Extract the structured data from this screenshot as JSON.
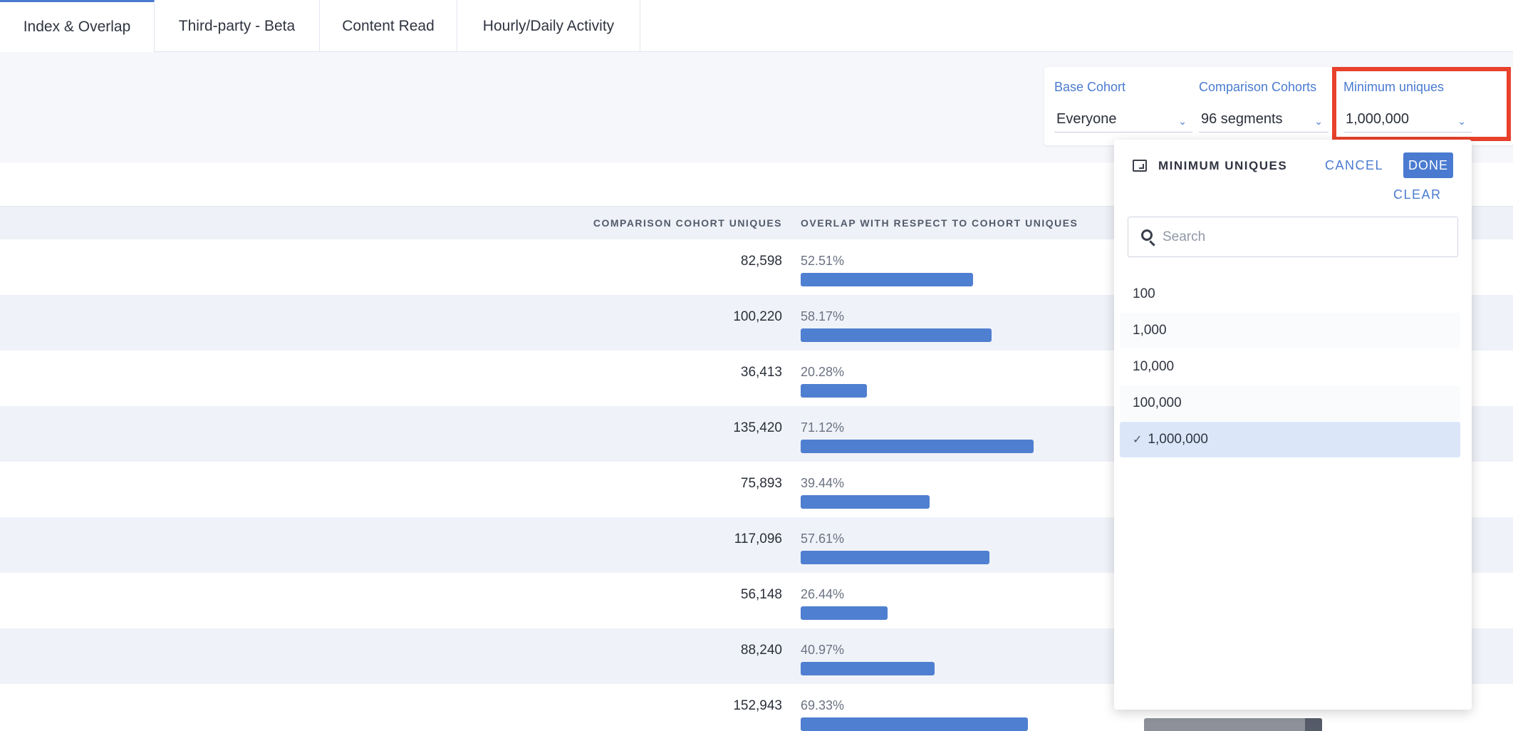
{
  "tabs": [
    {
      "label": "Index & Overlap"
    },
    {
      "label": "Third-party - Beta"
    },
    {
      "label": "Content Read"
    },
    {
      "label": "Hourly/Daily Activity"
    }
  ],
  "filters": {
    "base_cohort": {
      "label": "Base Cohort",
      "value": "Everyone"
    },
    "comparison_cohorts": {
      "label": "Comparison Cohorts",
      "value": "96 segments"
    },
    "minimum_uniques": {
      "label": "Minimum uniques",
      "value": "1,000,000"
    }
  },
  "table": {
    "headers": {
      "comparison_uniques": "COMPARISON COHORT UNIQUES",
      "overlap": "OVERLAP WITH RESPECT TO COHORT UNIQUES"
    },
    "rows": [
      {
        "uniques": "82,598",
        "overlap": "52.51%",
        "overlap_fraction": 0.5251
      },
      {
        "uniques": "100,220",
        "overlap": "58.17%",
        "overlap_fraction": 0.5817
      },
      {
        "uniques": "36,413",
        "overlap": "20.28%",
        "overlap_fraction": 0.2028
      },
      {
        "uniques": "135,420",
        "overlap": "71.12%",
        "overlap_fraction": 0.7112
      },
      {
        "uniques": "75,893",
        "overlap": "39.44%",
        "overlap_fraction": 0.3944
      },
      {
        "uniques": "117,096",
        "overlap": "57.61%",
        "overlap_fraction": 0.5761
      },
      {
        "uniques": "56,148",
        "overlap": "26.44%",
        "overlap_fraction": 0.2644
      },
      {
        "uniques": "88,240",
        "overlap": "40.97%",
        "overlap_fraction": 0.4097
      },
      {
        "uniques": "152,943",
        "overlap": "69.33%",
        "overlap_fraction": 0.6933
      }
    ]
  },
  "popover": {
    "title": "MINIMUM UNIQUES",
    "cancel": "CANCEL",
    "done": "DONE",
    "clear": "CLEAR",
    "search_placeholder": "Search",
    "options": [
      {
        "label": "100",
        "selected": false
      },
      {
        "label": "1,000",
        "selected": false
      },
      {
        "label": "10,000",
        "selected": false
      },
      {
        "label": "100,000",
        "selected": false
      },
      {
        "label": "1,000,000",
        "selected": true
      }
    ],
    "check_glyph": "✓"
  },
  "colors": {
    "accent": "#4a7bd0",
    "bar": "#4f7fd0",
    "highlight": "#e8412c",
    "selected_option": "#dbe7f9"
  }
}
